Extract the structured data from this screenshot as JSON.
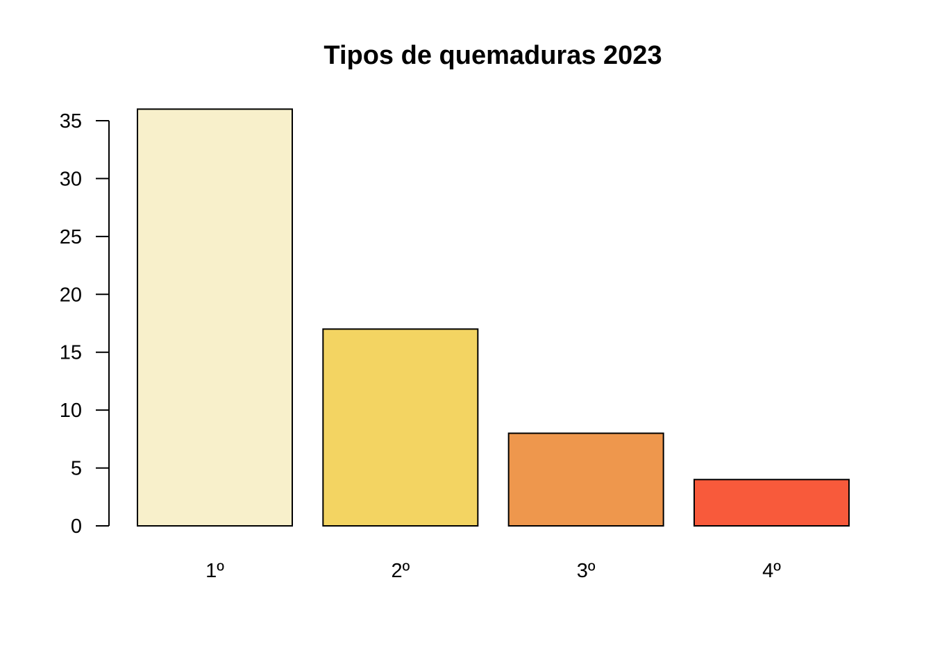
{
  "chart_data": {
    "type": "bar",
    "title": "Tipos de quemaduras 2023",
    "xlabel": "",
    "ylabel": "",
    "categories": [
      "1º",
      "2º",
      "3º",
      "4º"
    ],
    "values": [
      36,
      17,
      8,
      4
    ],
    "colors": [
      "#F8F0CB",
      "#F3D462",
      "#EE974D",
      "#F85A3B"
    ],
    "ylim": [
      0,
      36
    ],
    "yticks": [
      "0",
      "5",
      "10",
      "15",
      "20",
      "25",
      "30",
      "35"
    ],
    "grid": false,
    "legend": "none"
  }
}
